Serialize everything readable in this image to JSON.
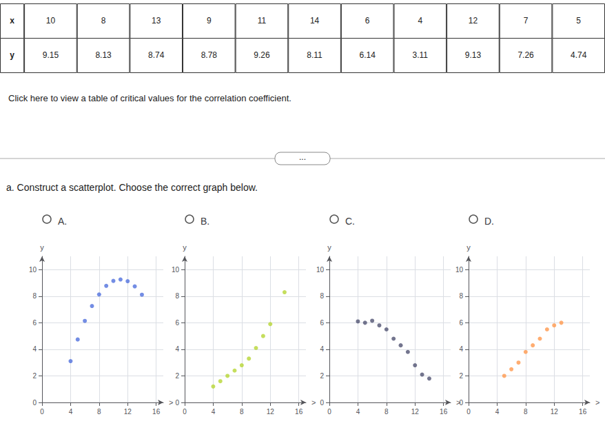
{
  "title": "a. Construct a scatterplot. Choose the correct graph below.",
  "table": [
    [
      "x",
      "10",
      "8",
      "13",
      "9",
      "11",
      "14",
      "6",
      "4",
      "12",
      "7",
      "5"
    ],
    [
      "y",
      "9.15",
      "8.13",
      "8.74",
      "8.78",
      "9.26",
      "8.11",
      "6.14",
      "3.11",
      "9.13",
      "7.26",
      "4.74"
    ]
  ],
  "annotations": [
    "Click here to view a table of critical values for the correlation coefficient.",
    "..."
  ],
  "chart_data": [
    {
      "type": "scatter",
      "title": "A.",
      "xlabel": ">",
      "ylabel": "y",
      "x": [
        10,
        8,
        13,
        9,
        11,
        14,
        6,
        4,
        12,
        7,
        5
      ],
      "values": [
        9.15,
        8.13,
        8.74,
        8.78,
        9.26,
        8.11,
        6.14,
        3.11,
        9.13,
        7.26,
        4.74
      ],
      "xlim": [
        0,
        17
      ],
      "ylim": [
        0,
        11
      ],
      "xticks": [
        0,
        4,
        8,
        12,
        16
      ],
      "yticks": [
        0,
        2,
        4,
        6,
        8,
        10
      ],
      "grid": true
    },
    {
      "type": "scatter",
      "title": "B.",
      "xlabel": ">",
      "ylabel": "y",
      "x": [
        4,
        5,
        6,
        7,
        8,
        9,
        10,
        11,
        12,
        14
      ],
      "values": [
        1.2,
        1.6,
        2.0,
        2.4,
        2.8,
        3.3,
        4.1,
        5.0,
        5.9,
        8.3
      ],
      "xlim": [
        0,
        17
      ],
      "ylim": [
        0,
        11
      ],
      "xticks": [
        0,
        4,
        8,
        12,
        16
      ],
      "yticks": [
        0,
        2,
        4,
        6,
        8,
        10
      ],
      "grid": true
    },
    {
      "type": "scatter",
      "title": "C.",
      "xlabel": ">",
      "ylabel": "y",
      "x": [
        4,
        5,
        6,
        7,
        8,
        9,
        10,
        11,
        12,
        13,
        14
      ],
      "values": [
        6.1,
        6.0,
        6.15,
        5.8,
        5.5,
        4.8,
        4.3,
        3.8,
        2.8,
        2.1,
        1.8
      ],
      "xlim": [
        0,
        17
      ],
      "ylim": [
        0,
        11
      ],
      "xticks": [
        0,
        4,
        8,
        12,
        16
      ],
      "yticks": [
        0,
        2,
        4,
        6,
        8,
        10
      ],
      "grid": true
    },
    {
      "type": "scatter",
      "title": "D.",
      "xlabel": ">",
      "ylabel": "y",
      "x": [
        5,
        6,
        7,
        8,
        9,
        10,
        11,
        12,
        13
      ],
      "values": [
        2.0,
        2.5,
        3.0,
        3.8,
        4.3,
        4.8,
        5.5,
        5.8,
        6.0
      ],
      "xlim": [
        0,
        17
      ],
      "ylim": [
        0,
        11
      ],
      "xticks": [
        0,
        4,
        8,
        12,
        16
      ],
      "yticks": [
        0,
        2,
        4,
        6,
        8,
        10
      ],
      "grid": true
    }
  ]
}
